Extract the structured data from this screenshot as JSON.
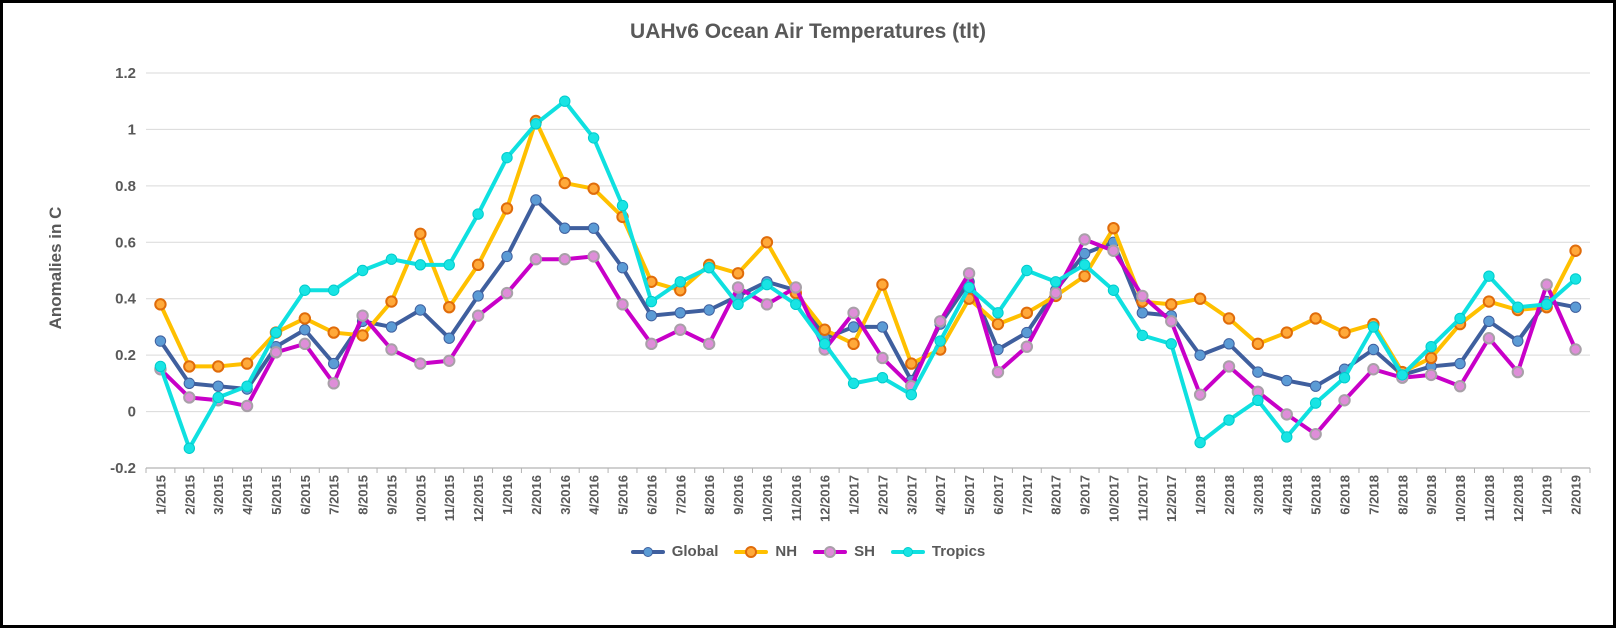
{
  "title": "UAHv6 Ocean Air Temperatures (tlt)",
  "chart_data": {
    "type": "line",
    "title": "UAHv6 Ocean Air Temperatures (tlt)",
    "xlabel": "",
    "ylabel": "Anomalies in C",
    "ylim": [
      -0.2,
      1.2
    ],
    "grid": true,
    "legend_position": "bottom",
    "x_tick_rotation": -90,
    "y_ticks": [
      {
        "label": "1.2",
        "value": 1.2
      },
      {
        "label": "1",
        "value": 1.0
      },
      {
        "label": "0.8",
        "value": 0.8
      },
      {
        "label": "0.6",
        "value": 0.6
      },
      {
        "label": "0.4",
        "value": 0.4
      },
      {
        "label": "0.2",
        "value": 0.2
      },
      {
        "label": "0",
        "value": 0.0
      },
      {
        "label": "-0.2",
        "value": -0.2
      }
    ],
    "categories": [
      "1/2015",
      "2/2015",
      "3/2015",
      "4/2015",
      "5/2015",
      "6/2015",
      "7/2015",
      "8/2015",
      "9/2015",
      "10/2015",
      "11/2015",
      "12/2015",
      "1/2016",
      "2/2016",
      "3/2016",
      "4/2016",
      "5/2016",
      "6/2016",
      "7/2016",
      "8/2016",
      "9/2016",
      "10/2016",
      "11/2016",
      "12/2016",
      "1/2017",
      "2/2017",
      "3/2017",
      "4/2017",
      "5/2017",
      "6/2017",
      "7/2017",
      "8/2017",
      "9/2017",
      "10/2017",
      "11/2017",
      "12/2017",
      "1/2018",
      "2/2018",
      "3/2018",
      "4/2018",
      "5/2018",
      "6/2018",
      "7/2018",
      "8/2018",
      "9/2018",
      "10/2018",
      "11/2018",
      "12/2018",
      "1/2019",
      "2/2019"
    ],
    "series": [
      {
        "name": "Global",
        "line_color": "#3f5f9e",
        "marker_fill": "#5b9bd5",
        "marker_stroke": "#3f5f9e",
        "marker_stroke_width": 1,
        "values": [
          0.25,
          0.1,
          0.09,
          0.08,
          0.23,
          0.29,
          0.17,
          0.32,
          0.3,
          0.36,
          0.26,
          0.41,
          0.55,
          0.75,
          0.65,
          0.65,
          0.51,
          0.34,
          0.35,
          0.36,
          0.41,
          0.46,
          0.43,
          0.26,
          0.3,
          0.3,
          0.11,
          0.31,
          0.46,
          0.22,
          0.28,
          0.43,
          0.56,
          0.6,
          0.35,
          0.34,
          0.2,
          0.24,
          0.14,
          0.11,
          0.09,
          0.15,
          0.22,
          0.13,
          0.16,
          0.17,
          0.32,
          0.25,
          0.39,
          0.37
        ]
      },
      {
        "name": "NH",
        "line_color": "#ffc000",
        "marker_fill": "#ffa93a",
        "marker_stroke": "#e06c0a",
        "marker_stroke_width": 2,
        "values": [
          0.38,
          0.16,
          0.16,
          0.17,
          0.28,
          0.33,
          0.28,
          0.27,
          0.39,
          0.63,
          0.37,
          0.52,
          0.72,
          1.03,
          0.81,
          0.79,
          0.69,
          0.46,
          0.43,
          0.52,
          0.49,
          0.6,
          0.42,
          0.29,
          0.24,
          0.45,
          0.17,
          0.22,
          0.4,
          0.31,
          0.35,
          0.41,
          0.48,
          0.65,
          0.39,
          0.38,
          0.4,
          0.33,
          0.24,
          0.28,
          0.33,
          0.28,
          0.31,
          0.14,
          0.19,
          0.31,
          0.39,
          0.36,
          0.37,
          0.57
        ]
      },
      {
        "name": "SH",
        "line_color": "#c800c8",
        "marker_fill": "#de8ed8",
        "marker_stroke": "#a8a0a8",
        "marker_stroke_width": 2,
        "values": [
          0.15,
          0.05,
          0.04,
          0.02,
          0.21,
          0.24,
          0.1,
          0.34,
          0.22,
          0.17,
          0.18,
          0.34,
          0.42,
          0.54,
          0.54,
          0.55,
          0.38,
          0.24,
          0.29,
          0.24,
          0.44,
          0.38,
          0.44,
          0.22,
          0.35,
          0.19,
          0.09,
          0.32,
          0.49,
          0.14,
          0.23,
          0.42,
          0.61,
          0.57,
          0.41,
          0.32,
          0.06,
          0.16,
          0.07,
          -0.01,
          -0.08,
          0.04,
          0.15,
          0.12,
          0.13,
          0.09,
          0.26,
          0.14,
          0.45,
          0.22
        ]
      },
      {
        "name": "Tropics",
        "line_color": "#0fe0e0",
        "marker_fill": "#18e4e4",
        "marker_stroke": "#00cccc",
        "marker_stroke_width": 1,
        "values": [
          0.16,
          -0.13,
          0.05,
          0.09,
          0.28,
          0.43,
          0.43,
          0.5,
          0.54,
          0.52,
          0.52,
          0.7,
          0.9,
          1.02,
          1.1,
          0.97,
          0.73,
          0.39,
          0.46,
          0.51,
          0.38,
          0.45,
          0.38,
          0.24,
          0.1,
          0.12,
          0.06,
          0.25,
          0.44,
          0.35,
          0.5,
          0.46,
          0.52,
          0.43,
          0.27,
          0.24,
          -0.11,
          -0.03,
          0.04,
          -0.09,
          0.03,
          0.12,
          0.3,
          0.13,
          0.23,
          0.33,
          0.48,
          0.37,
          0.38,
          0.47
        ]
      }
    ],
    "colors": {
      "gridline": "#d9d9d9",
      "axis": "#b3b3b3",
      "text": "#595959",
      "background": "#ffffff",
      "border": "#000000"
    }
  }
}
